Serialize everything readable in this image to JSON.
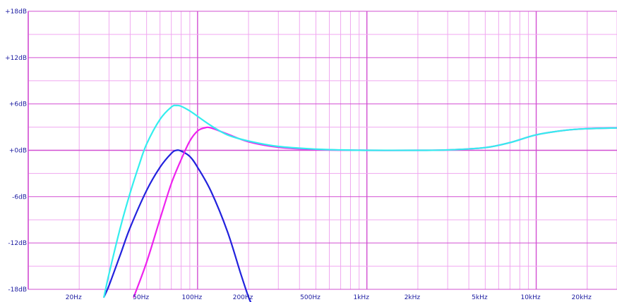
{
  "chart_data": {
    "type": "line",
    "title": "",
    "xlabel": "",
    "ylabel": "",
    "xscale": "log",
    "xlim": [
      10,
      30000
    ],
    "ylim": [
      -18,
      18
    ],
    "grid": true,
    "legend": "none",
    "y_ticks": [
      {
        "value": 18,
        "label": "+18dB"
      },
      {
        "value": 12,
        "label": "+12dB"
      },
      {
        "value": 6,
        "label": "+6dB"
      },
      {
        "value": 0,
        "label": "+0dB"
      },
      {
        "value": -6,
        "label": "-6dB"
      },
      {
        "value": -12,
        "label": "-12dB"
      },
      {
        "value": -18,
        "label": "-18dB"
      }
    ],
    "x_ticks": [
      {
        "value": 20,
        "label": "20Hz"
      },
      {
        "value": 50,
        "label": "50Hz"
      },
      {
        "value": 100,
        "label": "100Hz"
      },
      {
        "value": 200,
        "label": "200Hz"
      },
      {
        "value": 500,
        "label": "500Hz"
      },
      {
        "value": 1000,
        "label": "1kHz"
      },
      {
        "value": 2000,
        "label": "2kHz"
      },
      {
        "value": 5000,
        "label": "5kHz"
      },
      {
        "value": 10000,
        "label": "10kHz"
      },
      {
        "value": 20000,
        "label": "20kHz"
      }
    ],
    "series": [
      {
        "color": "#2222dd",
        "x": [
          28,
          30,
          35,
          40,
          50,
          60,
          70,
          75,
          80,
          90,
          100,
          120,
          150,
          180,
          200,
          210
        ],
        "y": [
          -19,
          -17.5,
          -13.5,
          -10,
          -5.2,
          -2.2,
          -0.4,
          0,
          -0.1,
          -0.8,
          -2.2,
          -5.3,
          -10.5,
          -16,
          -19,
          -20
        ]
      },
      {
        "color": "#ee22ee",
        "x": [
          42,
          50,
          60,
          70,
          80,
          90,
          100,
          110,
          120,
          150,
          200,
          300,
          500,
          1000,
          2000,
          3000,
          5000,
          7000,
          10000,
          15000,
          20000,
          30000
        ],
        "y": [
          -19,
          -14.5,
          -8.9,
          -4.3,
          -1.2,
          1.2,
          2.5,
          2.9,
          2.9,
          2.1,
          1.1,
          0.4,
          0.1,
          0,
          0,
          0.05,
          0.35,
          1.0,
          2.0,
          2.6,
          2.8,
          2.9
        ]
      },
      {
        "color": "#33eeee",
        "x": [
          28,
          30,
          35,
          40,
          45,
          50,
          60,
          70,
          75,
          80,
          90,
          100,
          120,
          150,
          200,
          300,
          500,
          700,
          1000,
          2000,
          3000,
          5000,
          7000,
          10000,
          15000,
          20000,
          30000
        ],
        "y": [
          -19,
          -16,
          -10,
          -5.5,
          -2.0,
          0.8,
          4.0,
          5.6,
          5.8,
          5.7,
          5.1,
          4.4,
          3.2,
          2.0,
          1.2,
          0.5,
          0.15,
          0.05,
          0,
          0,
          0.05,
          0.35,
          1.0,
          2.0,
          2.6,
          2.8,
          2.9
        ]
      }
    ]
  }
}
